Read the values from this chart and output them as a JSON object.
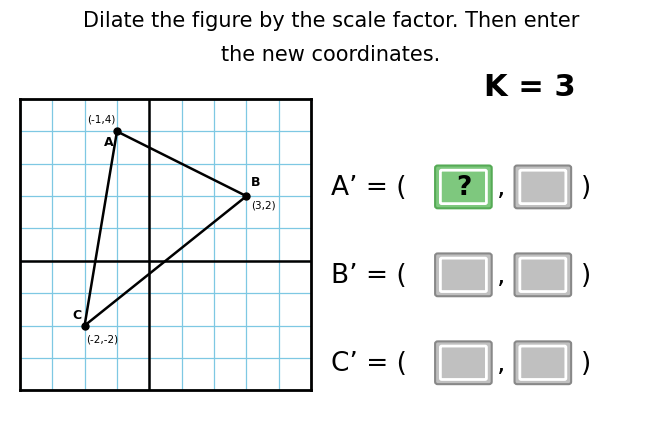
{
  "title_line1": "Dilate the figure by the scale factor. Then enter",
  "title_line2": "the new coordinates.",
  "scale_factor_text": "K = 3",
  "points": {
    "A": [
      -1,
      4
    ],
    "B": [
      3,
      2
    ],
    "C": [
      -2,
      -2
    ]
  },
  "bg_color": "#ffffff",
  "grid_color": "#7ec8e3",
  "grid_bg": "#ffffff",
  "gray_box_color": "#c0c0c0",
  "green_box_color": "#7ec87e",
  "title_fontsize": 15,
  "eq_fontsize": 19,
  "k_fontsize": 22,
  "grid_xlim": [
    -4,
    5
  ],
  "grid_ylim": [
    -4,
    5
  ]
}
